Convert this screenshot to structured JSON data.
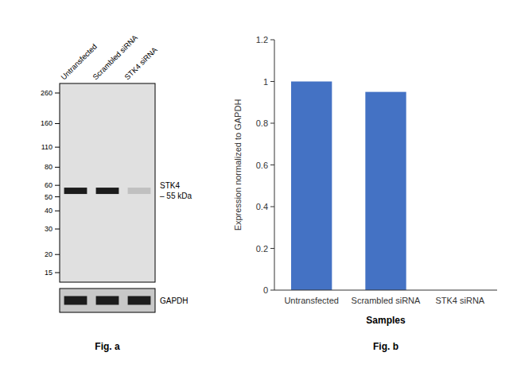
{
  "chart_data": [
    {
      "type": "bar",
      "categories": [
        "Untransfected",
        "Scrambled siRNA",
        "STK4 siRNA"
      ],
      "values": [
        1.0,
        0.95,
        0.0
      ],
      "color": "#4472C4",
      "ylabel": "Expression normalized to GAPDH",
      "xlabel": "Samples",
      "ylim": [
        0,
        1.2
      ],
      "yticks": [
        0,
        0.2,
        0.4,
        0.6,
        0.8,
        1.0,
        1.2
      ],
      "grid": false,
      "caption": "Fig. b"
    },
    {
      "type": "blot",
      "lanes": [
        "Untransfected",
        "Scrambled siRNA",
        "STK4 siRNA"
      ],
      "markers": [
        260,
        160,
        110,
        80,
        60,
        50,
        40,
        30,
        20,
        15
      ],
      "color": "#e0e0e0",
      "bands": [
        {
          "name": "STK4",
          "mw": 55,
          "label": "– 55 kDa",
          "colors": [
            "#1c1c1c",
            "#1c1c1c",
            "#c0c0c0"
          ]
        },
        {
          "name": "GAPDH",
          "color": "#c8c8c8",
          "colors": [
            "#1c1c1c",
            "#1c1c1c",
            "#1c1c1c"
          ]
        }
      ],
      "caption": "Fig. a"
    }
  ]
}
